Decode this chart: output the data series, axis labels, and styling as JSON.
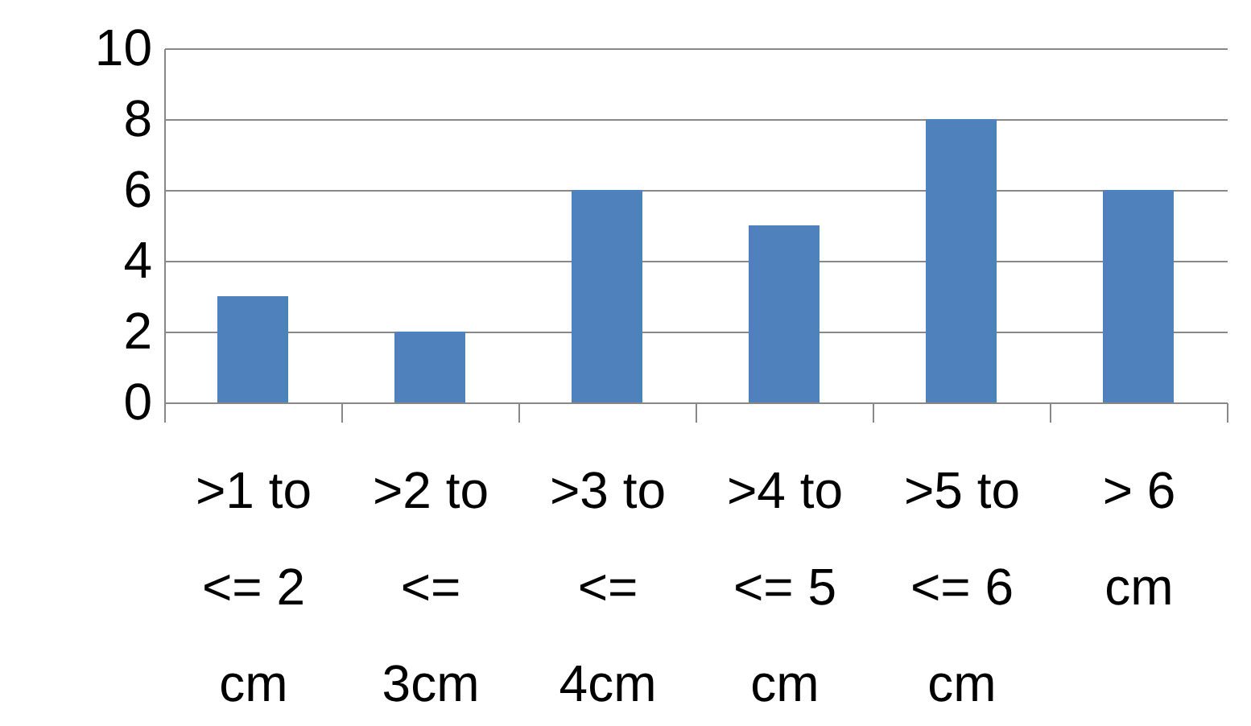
{
  "chart_data": {
    "type": "bar",
    "categories": [
      ">1 to <= 2 cm",
      ">2 to <= 3cm",
      ">3 to <= 4cm",
      ">4 to <= 5 cm",
      ">5 to <= 6 cm",
      "> 6 cm"
    ],
    "values": [
      3,
      2,
      6,
      5,
      8,
      6
    ],
    "color": "#4f81bd",
    "ylim": [
      0,
      10
    ],
    "yticks": [
      0,
      2,
      4,
      6,
      8,
      10
    ],
    "grid": "y"
  }
}
